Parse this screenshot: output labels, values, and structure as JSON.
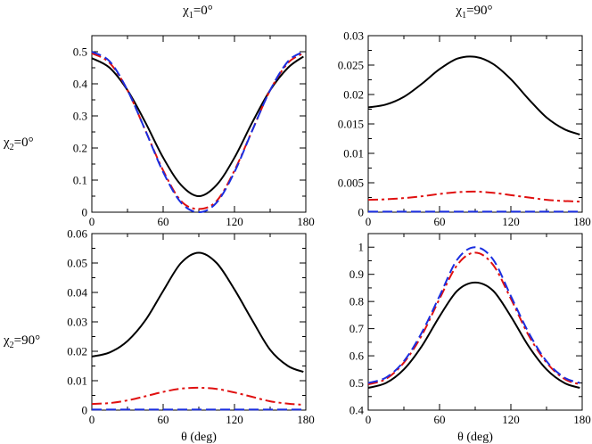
{
  "figure": {
    "col_titles": [
      {
        "name": "χ",
        "sub": "1",
        "value": "=0°"
      },
      {
        "name": "χ",
        "sub": "1",
        "value": "=90°"
      }
    ],
    "row_titles": [
      {
        "name": "χ",
        "sub": "2",
        "value": "=0°"
      },
      {
        "name": "χ",
        "sub": "2",
        "value": "=90°"
      }
    ],
    "colors": {
      "series_solid": "#000000",
      "series_dashdot": "#e01010",
      "series_dashed": "#1a2ee0"
    }
  },
  "chart_data": [
    {
      "type": "line",
      "title": "χ1=0°, χ2=0°",
      "xlabel": "",
      "ylabel": "",
      "xlim": [
        0,
        180
      ],
      "ylim": [
        0,
        0.55
      ],
      "xticks": [
        "0",
        "60",
        "120",
        "180"
      ],
      "xtick_values": [
        0,
        60,
        120,
        180
      ],
      "yticks": [
        "0",
        "0.1",
        "0.2",
        "0.3",
        "0.4",
        "0.5"
      ],
      "ytick_values": [
        0,
        0.1,
        0.2,
        0.3,
        0.4,
        0.5
      ],
      "x": [
        0,
        15,
        30,
        45,
        60,
        75,
        90,
        105,
        120,
        135,
        150,
        165,
        178
      ],
      "series": [
        {
          "name": "solid",
          "style": "solid",
          "color": "#000000",
          "values": [
            0.48,
            0.45,
            0.38,
            0.28,
            0.17,
            0.085,
            0.05,
            0.085,
            0.17,
            0.28,
            0.38,
            0.45,
            0.485
          ]
        },
        {
          "name": "dash-dot",
          "style": "dashdot",
          "color": "#e01010",
          "values": [
            0.495,
            0.465,
            0.38,
            0.255,
            0.13,
            0.035,
            0.01,
            0.035,
            0.13,
            0.255,
            0.38,
            0.465,
            0.495
          ]
        },
        {
          "name": "dashed",
          "style": "dashed",
          "color": "#1a2ee0",
          "values": [
            0.5,
            0.47,
            0.38,
            0.255,
            0.125,
            0.03,
            0.0,
            0.03,
            0.125,
            0.255,
            0.38,
            0.47,
            0.5
          ]
        }
      ]
    },
    {
      "type": "line",
      "title": "χ1=90°, χ2=0°",
      "xlabel": "",
      "ylabel": "",
      "xlim": [
        0,
        180
      ],
      "ylim": [
        0,
        0.03
      ],
      "xticks": [
        "0",
        "60",
        "120",
        "180"
      ],
      "xtick_values": [
        0,
        60,
        120,
        180
      ],
      "yticks": [
        "0",
        "0.005",
        "0.01",
        "0.015",
        "0.02",
        "0.025",
        "0.03"
      ],
      "ytick_values": [
        0,
        0.005,
        0.01,
        0.015,
        0.02,
        0.025,
        0.03
      ],
      "x": [
        0,
        15,
        30,
        45,
        60,
        75,
        90,
        105,
        120,
        135,
        150,
        165,
        178
      ],
      "series": [
        {
          "name": "solid",
          "style": "solid",
          "color": "#000000",
          "values": [
            0.0178,
            0.0183,
            0.0196,
            0.0218,
            0.0243,
            0.0261,
            0.0264,
            0.0252,
            0.0226,
            0.0192,
            0.0161,
            0.0141,
            0.0132
          ]
        },
        {
          "name": "dash-dot",
          "style": "dashdot",
          "color": "#e01010",
          "values": [
            0.0021,
            0.0022,
            0.0024,
            0.0027,
            0.0031,
            0.0034,
            0.0035,
            0.0033,
            0.0029,
            0.0025,
            0.0021,
            0.0019,
            0.0018
          ]
        },
        {
          "name": "dashed",
          "style": "dashed",
          "color": "#1a2ee0",
          "values": [
            0.0001,
            0.0001,
            0.0001,
            0.0001,
            0.0001,
            0.0001,
            0.0001,
            0.0001,
            0.0001,
            0.0001,
            0.0001,
            0.0001,
            0.0001
          ]
        }
      ]
    },
    {
      "type": "line",
      "title": "χ1=0°, χ2=90°",
      "xlabel": "θ  (deg)",
      "ylabel": "",
      "xlim": [
        0,
        180
      ],
      "ylim": [
        0,
        0.06
      ],
      "xticks": [
        "0",
        "60",
        "120",
        "180"
      ],
      "xtick_values": [
        0,
        60,
        120,
        180
      ],
      "yticks": [
        "0",
        "0.01",
        "0.02",
        "0.03",
        "0.04",
        "0.05",
        "0.06"
      ],
      "ytick_values": [
        0,
        0.01,
        0.02,
        0.03,
        0.04,
        0.05,
        0.06
      ],
      "x": [
        0,
        15,
        30,
        45,
        60,
        75,
        90,
        105,
        120,
        135,
        150,
        165,
        178
      ],
      "series": [
        {
          "name": "solid",
          "style": "solid",
          "color": "#000000",
          "values": [
            0.0182,
            0.0196,
            0.0235,
            0.0305,
            0.0405,
            0.05,
            0.0535,
            0.05,
            0.041,
            0.0305,
            0.0205,
            0.015,
            0.013
          ]
        },
        {
          "name": "dash-dot",
          "style": "dashdot",
          "color": "#e01010",
          "values": [
            0.0021,
            0.0024,
            0.0033,
            0.0047,
            0.0062,
            0.0073,
            0.0076,
            0.0072,
            0.006,
            0.0045,
            0.003,
            0.0022,
            0.0018
          ]
        },
        {
          "name": "dashed",
          "style": "dashed",
          "color": "#1a2ee0",
          "values": [
            0.0002,
            0.0002,
            0.0002,
            0.0002,
            0.0002,
            0.0002,
            0.0002,
            0.0002,
            0.0002,
            0.0002,
            0.0002,
            0.0002,
            0.0002
          ]
        }
      ]
    },
    {
      "type": "line",
      "title": "χ1=90°, χ2=90°",
      "xlabel": "θ  (deg)",
      "ylabel": "",
      "xlim": [
        0,
        180
      ],
      "ylim": [
        0.4,
        1.05
      ],
      "xticks": [
        "0",
        "60",
        "120",
        "180"
      ],
      "xtick_values": [
        0,
        60,
        120,
        180
      ],
      "yticks": [
        "0.4",
        "0.5",
        "0.6",
        "0.7",
        "0.8",
        "0.9",
        "1"
      ],
      "ytick_values": [
        0.4,
        0.5,
        0.6,
        0.7,
        0.8,
        0.9,
        1.0
      ],
      "x": [
        0,
        15,
        30,
        45,
        60,
        75,
        90,
        105,
        120,
        135,
        150,
        165,
        178
      ],
      "series": [
        {
          "name": "solid",
          "style": "solid",
          "color": "#000000",
          "values": [
            0.482,
            0.5,
            0.55,
            0.635,
            0.745,
            0.84,
            0.87,
            0.84,
            0.745,
            0.635,
            0.55,
            0.5,
            0.482
          ]
        },
        {
          "name": "dash-dot",
          "style": "dashdot",
          "color": "#e01010",
          "values": [
            0.495,
            0.515,
            0.575,
            0.675,
            0.81,
            0.935,
            0.98,
            0.935,
            0.81,
            0.675,
            0.575,
            0.515,
            0.495
          ]
        },
        {
          "name": "dashed",
          "style": "dashed",
          "color": "#1a2ee0",
          "values": [
            0.5,
            0.52,
            0.58,
            0.685,
            0.82,
            0.955,
            1.0,
            0.955,
            0.82,
            0.685,
            0.58,
            0.52,
            0.5
          ]
        }
      ]
    }
  ]
}
